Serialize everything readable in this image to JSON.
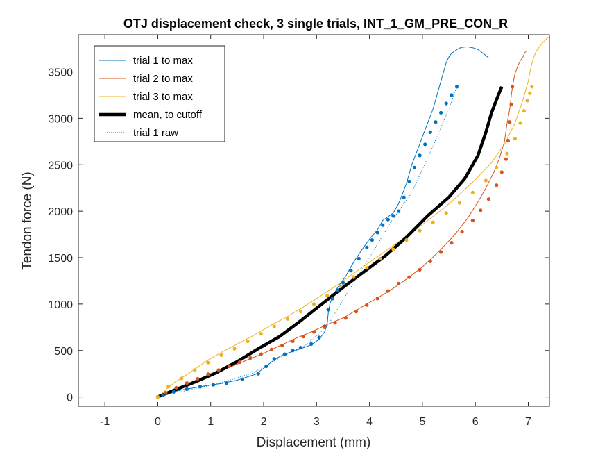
{
  "chart_data": {
    "type": "line",
    "title": "OTJ displacement check, 3 single trials, INT_1_GM_PRE_CON_R",
    "xlabel": "Displacement (mm)",
    "ylabel": "Tendon force (N)",
    "xlim": [
      -1.5,
      7.4
    ],
    "ylim": [
      -100,
      3900
    ],
    "xticks": [
      -1,
      0,
      1,
      2,
      3,
      4,
      5,
      6,
      7
    ],
    "yticks": [
      0,
      500,
      1000,
      1500,
      2000,
      2500,
      3000,
      3500
    ],
    "grid": false,
    "legend_position": "top-left",
    "colors": {
      "trial1": "#0072BD",
      "trial2": "#D95319",
      "trial3": "#EDB120",
      "mean": "#000000"
    },
    "series": [
      {
        "name": "trial 1 to max",
        "key": "trial1",
        "style": "thin-line",
        "x": [
          0.0,
          0.1,
          0.25,
          0.45,
          0.7,
          0.95,
          1.2,
          1.5,
          1.85,
          2.05,
          2.2,
          2.35,
          2.5,
          2.7,
          2.9,
          3.05,
          3.15,
          3.2,
          3.22,
          3.25,
          3.3,
          3.4,
          3.55,
          3.7,
          3.85,
          4.0,
          4.15,
          4.25,
          4.35,
          4.45,
          4.55,
          4.7,
          4.8,
          4.9,
          5.0,
          5.1,
          5.2,
          5.3,
          5.35,
          5.4,
          5.45,
          5.5,
          5.55,
          5.6,
          5.65,
          5.7,
          5.75,
          5.85,
          5.95,
          6.05,
          6.15,
          6.25
        ],
        "y": [
          0,
          20,
          50,
          75,
          100,
          125,
          145,
          180,
          245,
          330,
          400,
          450,
          480,
          520,
          560,
          620,
          700,
          780,
          900,
          1000,
          1080,
          1180,
          1300,
          1450,
          1580,
          1700,
          1800,
          1900,
          1940,
          1980,
          2080,
          2300,
          2500,
          2650,
          2800,
          2950,
          3100,
          3300,
          3400,
          3500,
          3600,
          3660,
          3700,
          3720,
          3740,
          3755,
          3765,
          3770,
          3760,
          3740,
          3700,
          3650
        ]
      },
      {
        "name": "trial 2 to max",
        "key": "trial2",
        "style": "thin-line",
        "x": [
          0.0,
          0.2,
          0.5,
          0.8,
          1.1,
          1.4,
          1.7,
          2.0,
          2.3,
          2.6,
          2.9,
          3.2,
          3.5,
          3.8,
          4.1,
          4.4,
          4.7,
          5.0,
          5.3,
          5.6,
          5.85,
          6.05,
          6.2,
          6.35,
          6.45,
          6.55,
          6.6,
          6.65,
          6.68,
          6.7,
          6.72,
          6.75,
          6.8,
          6.85,
          6.9,
          6.92,
          6.94,
          6.96
        ],
        "y": [
          0,
          60,
          120,
          200,
          270,
          330,
          400,
          470,
          550,
          630,
          700,
          780,
          850,
          950,
          1050,
          1150,
          1270,
          1400,
          1560,
          1740,
          1920,
          2100,
          2250,
          2420,
          2560,
          2750,
          2950,
          3100,
          3250,
          3330,
          3400,
          3480,
          3560,
          3620,
          3660,
          3690,
          3710,
          3720
        ]
      },
      {
        "name": "trial 3 to max",
        "key": "trial3",
        "style": "thin-line",
        "x": [
          0.0,
          0.3,
          0.6,
          0.9,
          1.2,
          1.5,
          1.8,
          2.1,
          2.4,
          2.7,
          3.0,
          3.3,
          3.6,
          3.9,
          4.2,
          4.5,
          4.8,
          5.1,
          5.4,
          5.7,
          6.0,
          6.3,
          6.55,
          6.75,
          6.9,
          7.0,
          7.05,
          7.1,
          7.15,
          7.2,
          7.25,
          7.3,
          7.35,
          7.4
        ],
        "y": [
          0,
          150,
          260,
          380,
          480,
          570,
          660,
          760,
          850,
          950,
          1060,
          1170,
          1290,
          1410,
          1530,
          1650,
          1770,
          1900,
          2030,
          2180,
          2340,
          2520,
          2720,
          2950,
          3200,
          3400,
          3550,
          3650,
          3720,
          3760,
          3800,
          3830,
          3860,
          3880
        ]
      },
      {
        "name": "mean, to cutoff",
        "key": "mean",
        "style": "thick-line",
        "x": [
          0.0,
          0.3,
          0.7,
          1.1,
          1.5,
          1.9,
          2.3,
          2.7,
          3.1,
          3.5,
          3.9,
          4.3,
          4.7,
          5.1,
          5.5,
          5.8,
          6.05,
          6.2,
          6.3,
          6.4,
          6.5
        ],
        "y": [
          0,
          70,
          160,
          260,
          380,
          520,
          650,
          820,
          1000,
          1180,
          1350,
          1520,
          1720,
          1950,
          2150,
          2350,
          2600,
          2850,
          3050,
          3200,
          3340
        ]
      },
      {
        "name": "trial 1 raw",
        "key": "trial1",
        "style": "dotted-line",
        "x": [
          -0.05,
          0.3,
          0.8,
          1.3,
          1.8,
          2.3,
          2.8,
          3.2,
          3.6,
          4.0,
          4.4,
          4.8,
          5.2,
          5.5,
          5.65
        ],
        "y": [
          0,
          40,
          100,
          170,
          260,
          420,
          560,
          760,
          1140,
          1500,
          1880,
          2200,
          2700,
          3100,
          3340
        ]
      }
    ],
    "markers": [
      {
        "key": "trial1",
        "x": [
          0.0,
          0.1,
          0.3,
          0.55,
          0.8,
          1.05,
          1.3,
          1.6,
          1.9,
          2.05,
          2.2,
          2.4,
          2.55,
          2.7,
          2.9,
          3.05,
          3.15,
          3.22,
          3.3,
          3.4,
          3.5,
          3.65,
          3.8,
          3.95,
          4.05,
          4.15,
          4.25,
          4.35,
          4.45,
          4.55,
          4.65,
          4.75,
          4.85,
          4.95,
          5.05,
          5.15,
          5.25,
          5.35,
          5.45,
          5.55,
          5.65
        ],
        "y": [
          0,
          20,
          55,
          85,
          110,
          130,
          150,
          190,
          250,
          330,
          410,
          460,
          500,
          530,
          570,
          640,
          760,
          940,
          1060,
          1150,
          1230,
          1360,
          1490,
          1610,
          1690,
          1770,
          1850,
          1910,
          1950,
          2000,
          2150,
          2320,
          2470,
          2600,
          2720,
          2850,
          2960,
          3060,
          3160,
          3250,
          3340
        ]
      },
      {
        "key": "trial2",
        "x": [
          0.0,
          0.15,
          0.35,
          0.55,
          0.75,
          0.95,
          1.15,
          1.35,
          1.55,
          1.75,
          1.95,
          2.15,
          2.35,
          2.55,
          2.75,
          2.95,
          3.15,
          3.35,
          3.55,
          3.75,
          3.95,
          4.15,
          4.35,
          4.55,
          4.75,
          4.95,
          5.15,
          5.35,
          5.55,
          5.75,
          5.95,
          6.1,
          6.25,
          6.4,
          6.5,
          6.58,
          6.62,
          6.65,
          6.68,
          6.7
        ],
        "y": [
          0,
          45,
          100,
          150,
          195,
          245,
          290,
          330,
          375,
          420,
          460,
          510,
          555,
          600,
          650,
          700,
          750,
          800,
          850,
          920,
          990,
          1060,
          1140,
          1220,
          1290,
          1370,
          1460,
          1560,
          1660,
          1780,
          1900,
          2010,
          2130,
          2280,
          2420,
          2560,
          2760,
          2960,
          3150,
          3340
        ]
      },
      {
        "key": "trial3",
        "x": [
          0.0,
          0.2,
          0.45,
          0.7,
          0.95,
          1.2,
          1.45,
          1.7,
          1.95,
          2.2,
          2.45,
          2.7,
          2.95,
          3.2,
          3.45,
          3.7,
          3.95,
          4.2,
          4.45,
          4.7,
          4.95,
          5.2,
          5.45,
          5.7,
          5.95,
          6.2,
          6.4,
          6.6,
          6.75,
          6.85,
          6.92,
          6.98,
          7.03,
          7.07
        ],
        "y": [
          0,
          110,
          200,
          290,
          370,
          450,
          520,
          600,
          680,
          760,
          840,
          920,
          1000,
          1090,
          1190,
          1290,
          1390,
          1490,
          1590,
          1690,
          1790,
          1880,
          1980,
          2090,
          2200,
          2330,
          2470,
          2620,
          2780,
          2950,
          3080,
          3190,
          3270,
          3340
        ]
      }
    ]
  }
}
